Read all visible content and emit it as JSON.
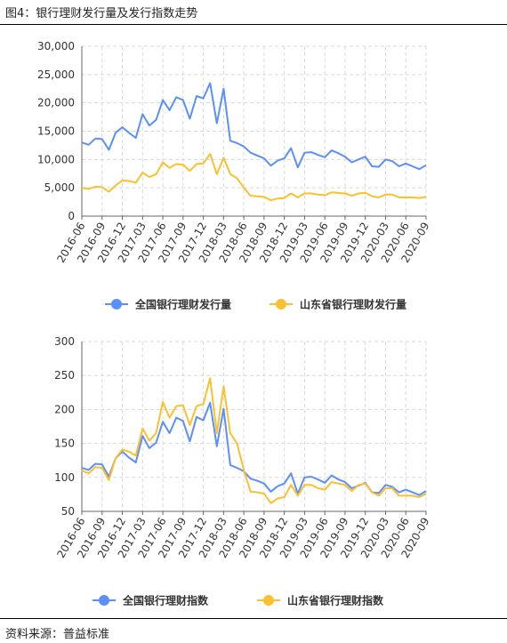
{
  "page": {
    "title": "图4：银行理财发行量及发行指数走势",
    "source": "资料来源：普益标准"
  },
  "colors": {
    "national": "#5B8FF9",
    "shandong": "#FBC02D",
    "grid": "#d9d9d9",
    "axis": "#666666"
  },
  "chart_data": [
    {
      "type": "line",
      "x": [
        "2016-06",
        "2016-07",
        "2016-08",
        "2016-09",
        "2016-10",
        "2016-11",
        "2016-12",
        "2017-01",
        "2017-02",
        "2017-03",
        "2017-04",
        "2017-05",
        "2017-06",
        "2017-07",
        "2017-08",
        "2017-09",
        "2017-10",
        "2017-11",
        "2017-12",
        "2018-01",
        "2018-02",
        "2018-03",
        "2018-04",
        "2018-05",
        "2018-06",
        "2018-07",
        "2018-08",
        "2018-09",
        "2018-10",
        "2018-11",
        "2018-12",
        "2019-01",
        "2019-02",
        "2019-03",
        "2019-04",
        "2019-05",
        "2019-06",
        "2019-07",
        "2019-08",
        "2019-09",
        "2019-10",
        "2019-11",
        "2019-12",
        "2020-01",
        "2020-02",
        "2020-03",
        "2020-04",
        "2020-05",
        "2020-06",
        "2020-07",
        "2020-08",
        "2020-09"
      ],
      "xticks": [
        "2016-06",
        "2016-09",
        "2016-12",
        "2017-03",
        "2017-06",
        "2017-09",
        "2017-12",
        "2018-03",
        "2018-06",
        "2018-09",
        "2018-12",
        "2019-03",
        "2019-06",
        "2019-09",
        "2019-12",
        "2020-03",
        "2020-06",
        "2020-09"
      ],
      "ylim": [
        0,
        30000
      ],
      "yticks": [
        "0",
        "5,000",
        "10,000",
        "15,000",
        "20,000",
        "25,000",
        "30,000"
      ],
      "series": [
        {
          "name": "全国银行理财发行量",
          "color": "#5B8FF9",
          "values": [
            13000,
            12600,
            13700,
            13600,
            11700,
            14700,
            15700,
            14700,
            13800,
            18000,
            16000,
            17000,
            20500,
            18700,
            21000,
            20500,
            17200,
            21200,
            20800,
            23500,
            16400,
            22500,
            13300,
            12900,
            12300,
            11200,
            10700,
            10200,
            8900,
            9800,
            10200,
            12000,
            8600,
            11200,
            11300,
            10800,
            10400,
            11600,
            11100,
            10500,
            9500,
            10000,
            10500,
            8800,
            8700,
            10000,
            9700,
            8800,
            9300,
            8800,
            8300,
            9000
          ]
        },
        {
          "name": "山东省银行理财发行量",
          "color": "#FBC02D",
          "values": [
            5000,
            4800,
            5200,
            5100,
            4300,
            5400,
            6300,
            6200,
            5900,
            7700,
            6900,
            7400,
            9500,
            8500,
            9200,
            9100,
            8000,
            9200,
            9300,
            11000,
            7400,
            10300,
            7400,
            6700,
            5000,
            3600,
            3500,
            3400,
            2800,
            3100,
            3200,
            4000,
            3300,
            4000,
            4000,
            3800,
            3700,
            4200,
            4100,
            4000,
            3600,
            4000,
            4100,
            3500,
            3300,
            3800,
            3800,
            3300,
            3300,
            3300,
            3200,
            3400
          ]
        }
      ]
    },
    {
      "type": "line",
      "x": [
        "2016-06",
        "2016-07",
        "2016-08",
        "2016-09",
        "2016-10",
        "2016-11",
        "2016-12",
        "2017-01",
        "2017-02",
        "2017-03",
        "2017-04",
        "2017-05",
        "2017-06",
        "2017-07",
        "2017-08",
        "2017-09",
        "2017-10",
        "2017-11",
        "2017-12",
        "2018-01",
        "2018-02",
        "2018-03",
        "2018-04",
        "2018-05",
        "2018-06",
        "2018-07",
        "2018-08",
        "2018-09",
        "2018-10",
        "2018-11",
        "2018-12",
        "2019-01",
        "2019-02",
        "2019-03",
        "2019-04",
        "2019-05",
        "2019-06",
        "2019-07",
        "2019-08",
        "2019-09",
        "2019-10",
        "2019-11",
        "2019-12",
        "2020-01",
        "2020-02",
        "2020-03",
        "2020-04",
        "2020-05",
        "2020-06",
        "2020-07",
        "2020-08",
        "2020-09"
      ],
      "xticks": [
        "2016-06",
        "2016-09",
        "2016-12",
        "2017-03",
        "2017-06",
        "2017-09",
        "2017-12",
        "2018-03",
        "2018-06",
        "2018-09",
        "2018-12",
        "2019-03",
        "2019-06",
        "2019-09",
        "2019-12",
        "2020-03",
        "2020-06",
        "2020-09"
      ],
      "ylim": [
        50,
        300
      ],
      "yticks": [
        "50",
        "100",
        "150",
        "200",
        "250",
        "300"
      ],
      "series": [
        {
          "name": "全国银行理财指数",
          "color": "#5B8FF9",
          "values": [
            114,
            111,
            120,
            119,
            101,
            128,
            138,
            129,
            122,
            161,
            143,
            151,
            182,
            165,
            188,
            183,
            153,
            189,
            184,
            210,
            146,
            201,
            118,
            114,
            109,
            98,
            95,
            91,
            79,
            87,
            91,
            106,
            76,
            100,
            101,
            97,
            92,
            103,
            97,
            93,
            84,
            88,
            92,
            78,
            77,
            89,
            86,
            78,
            82,
            78,
            74,
            80
          ]
        },
        {
          "name": "山东省银行理财指数",
          "color": "#FBC02D",
          "values": [
            110,
            106,
            115,
            114,
            96,
            128,
            141,
            138,
            132,
            172,
            154,
            165,
            211,
            188,
            205,
            206,
            177,
            205,
            208,
            246,
            165,
            234,
            165,
            150,
            111,
            79,
            78,
            76,
            62,
            69,
            71,
            89,
            73,
            89,
            89,
            84,
            82,
            93,
            91,
            89,
            80,
            89,
            91,
            78,
            73,
            84,
            84,
            73,
            73,
            73,
            71,
            76
          ]
        }
      ]
    }
  ]
}
